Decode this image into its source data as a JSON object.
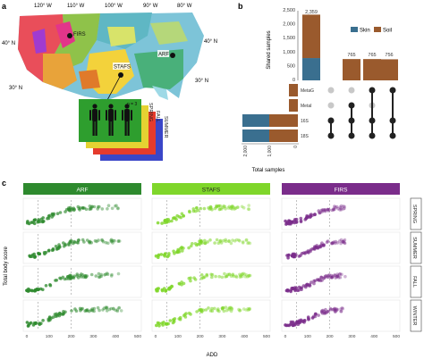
{
  "panels": {
    "a": "a",
    "b": "b",
    "c": "c"
  },
  "map": {
    "longitudes": [
      "120° W",
      "110° W",
      "100° W",
      "90° W",
      "80° W"
    ],
    "latitudes": [
      "40° N",
      "30° N"
    ],
    "sites": [
      "FIRS",
      "ARF",
      "STAFS"
    ],
    "seasons": [
      "SPRING",
      "FALL",
      "SUMMER",
      "WINTER"
    ],
    "replicate_label": "n = 3",
    "colors": {
      "spring": "#2e9e2e",
      "fall": "#e5d232",
      "summer": "#e53b2c",
      "winter": "#3a46c8"
    }
  },
  "upset": {
    "ylabel": "Shared samples",
    "xlabel": "Total samples",
    "legend": [
      {
        "name": "Skin",
        "color": "#3a6f8f"
      },
      {
        "name": "Soil",
        "color": "#9a5a2d"
      }
    ],
    "yticks": [
      "0",
      "500",
      "1,000",
      "1,500",
      "2,000",
      "2,500"
    ],
    "xticks": [
      "2,000",
      "1,000",
      "0"
    ],
    "sets": [
      "MetaG",
      "MetaI",
      "16S",
      "18S"
    ]
  },
  "chart_data": {
    "type": "bar",
    "categories": [
      "16S & 18S",
      "16S & 18S & MetaI",
      "16S & 18S & MetaG & MetaI",
      "16S & 18S & MetaG"
    ],
    "series": [
      {
        "name": "Skin",
        "values": [
          800,
          0,
          0,
          0
        ]
      },
      {
        "name": "Soil",
        "values": [
          1559,
          765,
          765,
          756
        ]
      }
    ],
    "data_labels": [
      "2,359",
      "765",
      "765",
      "756"
    ],
    "ylabel": "Shared samples",
    "ylim": [
      0,
      2500
    ]
  },
  "scatter_panel": {
    "sites": [
      {
        "name": "ARF",
        "color": "#2e8a2e"
      },
      {
        "name": "STAFS",
        "color": "#7fd62a"
      },
      {
        "name": "FIRS",
        "color": "#7a2c8a"
      }
    ],
    "seasons": [
      "SPRING",
      "SUMMER",
      "FALL",
      "WINTER"
    ],
    "ylabel": "Total body score",
    "xlabel": "ADD",
    "xticks": [
      "0",
      "100",
      "200",
      "300",
      "400",
      "500"
    ]
  }
}
